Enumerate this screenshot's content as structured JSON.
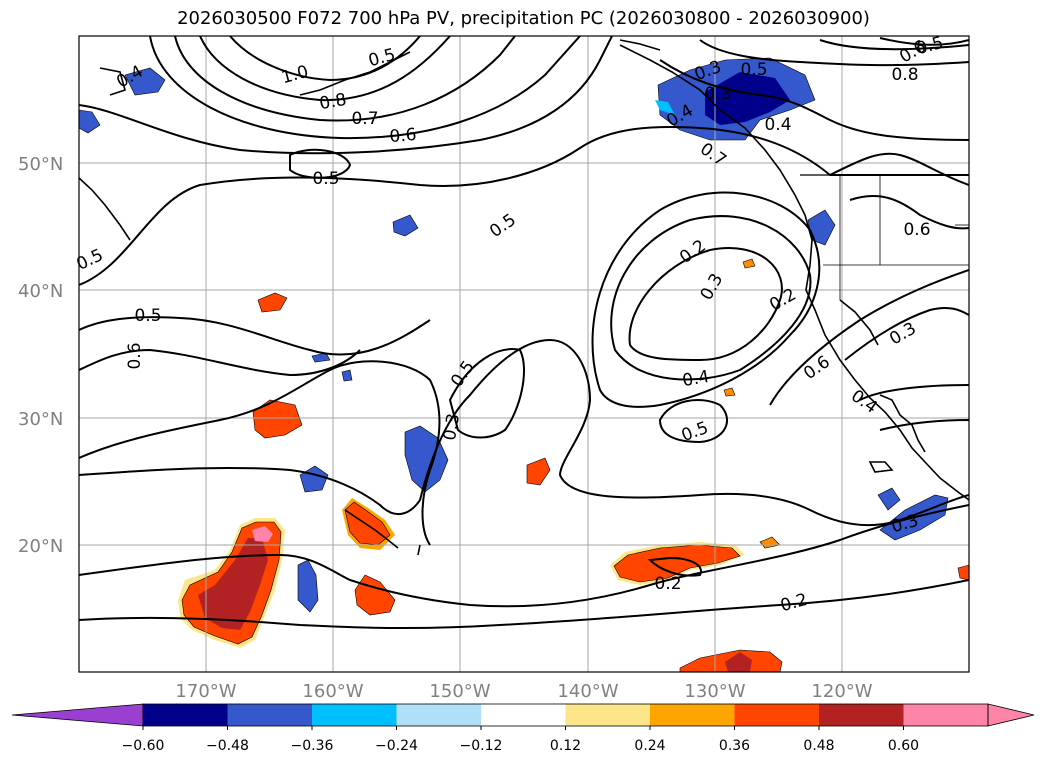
{
  "title": "2026030500 F072 700 hPa PV, precipitation PC (2026030800 - 2026030900)",
  "map": {
    "lon_range": [
      -180,
      -110
    ],
    "lat_range": [
      10,
      60
    ],
    "lat_labels": [
      "50°N",
      "40°N",
      "30°N",
      "20°N"
    ],
    "lon_labels": [
      "170°W",
      "160°W",
      "150°W",
      "140°W",
      "130°W",
      "120°W"
    ],
    "contour_labels": [
      "1.0",
      "0.8",
      "0.7",
      "0.6",
      "0.5",
      "0.5",
      "0.5",
      "0.5",
      "0.6",
      "0.5",
      "0.3",
      "0.2",
      "0.3",
      "0.2",
      "0.4",
      "0.5",
      "0.6",
      "0.4",
      "0.3",
      "0.2",
      "0.3",
      "0.2",
      "0.3",
      "0.5",
      "0.4",
      "0.3",
      "0.4",
      "0.7",
      "0.6",
      "0.8",
      "0.6",
      "0.5",
      "0.4",
      "0.5"
    ]
  },
  "colorbar": {
    "ticks": [
      "−0.60",
      "−0.48",
      "−0.36",
      "−0.24",
      "−0.12",
      "0.12",
      "0.24",
      "0.36",
      "0.48",
      "0.60"
    ],
    "colors": [
      "#9a3fd0",
      "#00008b",
      "#3558cc",
      "#00bfff",
      "#b0e0f8",
      "#ffffff",
      "#fde58a",
      "#ffa500",
      "#ff4500",
      "#b22222",
      "#ff85a8",
      "#ff85a8"
    ],
    "extend": "both"
  }
}
